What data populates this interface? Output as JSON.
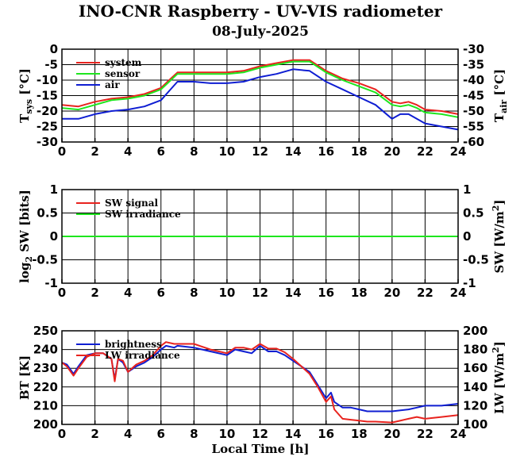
{
  "title": "INO-CNR Raspberry - UV-VIS radiometer",
  "subtitle": "08-July-2025",
  "xlabel": "Local Time [h]",
  "chart_data": [
    {
      "type": "line",
      "panel": "temperature",
      "xlim": [
        0,
        24
      ],
      "xticks": [
        0,
        2,
        4,
        6,
        8,
        10,
        12,
        14,
        16,
        18,
        20,
        22,
        24
      ],
      "ylim": [
        -30,
        0
      ],
      "yticks": [
        -30,
        -25,
        -20,
        -15,
        -10,
        -5,
        0
      ],
      "ylabel": "T_sys [°C]",
      "ylim_right": [
        -60,
        -30
      ],
      "yticks_right": [
        -60,
        -55,
        -50,
        -45,
        -40,
        -35,
        -30
      ],
      "ylabel_right": "T_air [°C]",
      "grid": true,
      "legend": "top-left",
      "series": [
        {
          "name": "system",
          "color": "#e8231e",
          "axis": "left",
          "x": [
            0,
            1,
            2,
            3,
            4,
            5,
            6,
            6.5,
            7,
            8,
            9,
            10,
            11,
            12,
            13,
            14,
            15,
            16,
            17,
            18,
            19,
            20,
            20.5,
            21,
            21.5,
            22,
            23,
            24
          ],
          "y": [
            -18,
            -18.5,
            -17,
            -16,
            -15.5,
            -14.5,
            -12.5,
            -10,
            -7.5,
            -7.5,
            -7.5,
            -7.5,
            -7,
            -5.5,
            -4.5,
            -3.5,
            -3.5,
            -7,
            -9.5,
            -11,
            -13,
            -17,
            -17.5,
            -17,
            -18,
            -19.5,
            -20,
            -21
          ]
        },
        {
          "name": "sensor",
          "color": "#1ee61e",
          "axis": "left",
          "x": [
            0,
            1,
            2,
            3,
            4,
            5,
            6,
            6.5,
            7,
            8,
            9,
            10,
            11,
            12,
            13,
            14,
            15,
            16,
            17,
            18,
            19,
            20,
            20.5,
            21,
            21.5,
            22,
            23,
            24
          ],
          "y": [
            -19,
            -19.5,
            -18,
            -16.5,
            -16,
            -15,
            -13,
            -10.5,
            -8,
            -8,
            -8,
            -8,
            -7.5,
            -6,
            -5,
            -4,
            -4,
            -7.5,
            -10,
            -12,
            -14,
            -18,
            -18.5,
            -18,
            -19,
            -20.5,
            -21,
            -22
          ]
        },
        {
          "name": "air",
          "color": "#0f1ed2",
          "axis": "right",
          "x": [
            0,
            1,
            2,
            3,
            4,
            5,
            6,
            6.5,
            7,
            8,
            9,
            10,
            11,
            12,
            13,
            14,
            15,
            16,
            17,
            18,
            19,
            20,
            20.5,
            21,
            21.5,
            22,
            23,
            24
          ],
          "y": [
            -52.5,
            -52.5,
            -51,
            -50,
            -49.5,
            -48.5,
            -46.5,
            -43.5,
            -40.5,
            -40.5,
            -41,
            -41,
            -40.5,
            -39,
            -38,
            -36.5,
            -37,
            -40.5,
            -43,
            -45.5,
            -48,
            -52.5,
            -51,
            -51,
            -52.5,
            -54,
            -55,
            -56
          ]
        }
      ]
    },
    {
      "type": "line",
      "panel": "shortwave",
      "xlim": [
        0,
        24
      ],
      "xticks": [
        0,
        2,
        4,
        6,
        8,
        10,
        12,
        14,
        16,
        18,
        20,
        22,
        24
      ],
      "ylim": [
        -1,
        1
      ],
      "yticks": [
        -1,
        -0.5,
        0,
        0.5,
        1
      ],
      "ylabel": "log2 SW [bits]",
      "ylim_right": [
        -1,
        1
      ],
      "yticks_right": [
        -1,
        -0.5,
        0,
        0.5,
        1
      ],
      "ylabel_right": "SW [W/m2]",
      "grid": true,
      "legend": "top-left",
      "series": [
        {
          "name": "SW signal",
          "color": "#e8231e",
          "axis": "left",
          "x": [
            0,
            24
          ],
          "y": [
            0,
            0
          ]
        },
        {
          "name": "SW irradiance",
          "color": "#1ee61e",
          "axis": "right",
          "x": [
            0,
            24
          ],
          "y": [
            0,
            0
          ]
        }
      ]
    },
    {
      "type": "line",
      "panel": "longwave",
      "xlim": [
        0,
        24
      ],
      "xticks": [
        0,
        2,
        4,
        6,
        8,
        10,
        12,
        14,
        16,
        18,
        20,
        22,
        24
      ],
      "ylim": [
        200,
        250
      ],
      "yticks": [
        200,
        210,
        220,
        230,
        240,
        250
      ],
      "ylabel": "BT [K]",
      "ylim_right": [
        100,
        200
      ],
      "yticks_right": [
        100,
        120,
        140,
        160,
        180,
        200
      ],
      "ylabel_right": "LW [W/m2]",
      "grid": true,
      "legend": "top-left",
      "series": [
        {
          "name": "brightness",
          "color": "#0f1ed2",
          "axis": "left",
          "x": [
            0,
            0.3,
            0.7,
            1,
            1.5,
            2,
            2.5,
            3,
            3.2,
            3.4,
            3.7,
            4,
            4.5,
            5,
            5.5,
            6,
            6.3,
            6.8,
            7,
            8,
            9,
            10,
            10.5,
            11,
            11.5,
            12,
            12.5,
            13,
            13.5,
            14,
            14.5,
            15,
            15.5,
            16,
            16.3,
            16.5,
            17,
            17.5,
            18,
            18.5,
            19,
            20,
            21,
            21.5,
            22,
            23,
            24
          ],
          "y": [
            233,
            232,
            227,
            231,
            237,
            238,
            238,
            235,
            224,
            235,
            233,
            228,
            231,
            233,
            236,
            240,
            242,
            241,
            242,
            241,
            239,
            237,
            240,
            239,
            238,
            242,
            239,
            239,
            237,
            234,
            231,
            228,
            221,
            214,
            217,
            212,
            209,
            209,
            208,
            207,
            207,
            207,
            208,
            209,
            210,
            210,
            211
          ]
        },
        {
          "name": "LW irradiance",
          "color": "#e8231e",
          "axis": "right",
          "x": [
            0,
            0.3,
            0.7,
            1,
            1.5,
            2,
            2.5,
            3,
            3.2,
            3.4,
            3.7,
            4,
            4.5,
            5,
            5.5,
            6,
            6.3,
            6.8,
            7,
            8,
            9,
            10,
            10.5,
            11,
            11.5,
            12,
            12.5,
            13,
            13.5,
            14,
            14.5,
            15,
            15.5,
            16,
            16.3,
            16.5,
            17,
            17.5,
            18,
            18.5,
            19,
            20,
            21,
            21.5,
            22,
            23,
            24
          ],
          "y": [
            166,
            162,
            152,
            160,
            172,
            176,
            176,
            170,
            146,
            170,
            168,
            156,
            164,
            168,
            174,
            184,
            188,
            186,
            186,
            186,
            180,
            176,
            182,
            182,
            180,
            186,
            181,
            181,
            177,
            170,
            162,
            154,
            140,
            124,
            130,
            116,
            106,
            105,
            104,
            103,
            103,
            102,
            106,
            108,
            106,
            108,
            110
          ]
        }
      ]
    }
  ]
}
